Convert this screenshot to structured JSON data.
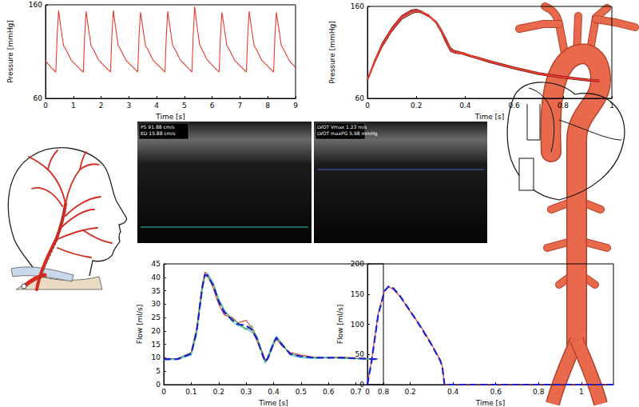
{
  "chart_data": [
    {
      "type": "line",
      "x_label": "Time [s]",
      "y_label": "Pressure [mmHg]",
      "xlim": [
        0,
        9
      ],
      "xticks": [
        0,
        1,
        2,
        3,
        4,
        5,
        6,
        7,
        8,
        9
      ],
      "ylim": [
        60,
        160
      ],
      "yticks": [
        60,
        160
      ],
      "grid": false,
      "series": [
        {
          "color": "#e8392b",
          "line_style": "solid",
          "x": [
            0,
            0.2,
            0.37,
            0.42,
            0.47,
            0.55,
            0.65,
            0.72,
            0.92,
            1.22,
            1.36,
            1.41,
            1.46,
            1.54,
            1.64,
            1.71,
            1.91,
            2.21,
            2.34,
            2.39,
            2.44,
            2.52,
            2.62,
            2.69,
            2.89,
            3.19,
            3.32,
            3.37,
            3.42,
            3.5,
            3.6,
            3.67,
            3.87,
            4.17,
            4.3,
            4.35,
            4.4,
            4.48,
            4.58,
            4.65,
            4.85,
            5.15,
            5.27,
            5.32,
            5.37,
            5.45,
            5.55,
            5.62,
            5.82,
            6.12,
            6.25,
            6.3,
            6.35,
            6.43,
            6.53,
            6.6,
            6.8,
            7.1,
            7.23,
            7.28,
            7.33,
            7.41,
            7.51,
            7.58,
            7.78,
            8.08,
            8.21,
            8.26,
            8.31,
            8.39,
            8.49,
            8.56,
            8.76,
            9.0
          ],
          "values": [
            100,
            93,
            88,
            128,
            154,
            136,
            116,
            113,
            101,
            92,
            88,
            128,
            153,
            136,
            116,
            113,
            101,
            92,
            88,
            128,
            154,
            136,
            116,
            113,
            101,
            92,
            88,
            128,
            152,
            136,
            116,
            113,
            101,
            92,
            88,
            128,
            153,
            136,
            116,
            113,
            101,
            92,
            88,
            130,
            158,
            138,
            117,
            113,
            101,
            92,
            88,
            128,
            152,
            136,
            116,
            113,
            101,
            92,
            88,
            128,
            153,
            136,
            116,
            113,
            101,
            92,
            88,
            128,
            152,
            136,
            116,
            113,
            101,
            93
          ]
        }
      ]
    },
    {
      "type": "line",
      "x_label": "Time [s]",
      "y_label": "Pressure [mmHg]",
      "xlim": [
        0,
        1
      ],
      "xticks": [
        0,
        0.2,
        0.4,
        0.6,
        0.8,
        1
      ],
      "ylim": [
        60,
        160
      ],
      "yticks": [
        60,
        160
      ],
      "grid": false,
      "series": [
        {
          "color": "#7a1c1c",
          "line_style": "solid",
          "x": [
            0,
            0.03,
            0.06,
            0.1,
            0.14,
            0.18,
            0.2,
            0.22,
            0.25,
            0.28,
            0.3,
            0.32,
            0.34,
            0.36,
            0.4,
            0.45,
            0.5,
            0.6,
            0.7,
            0.8,
            0.9,
            0.95
          ],
          "values": [
            79,
            101,
            120,
            137,
            150,
            156,
            157,
            155,
            150,
            142,
            133,
            121,
            111,
            109,
            108,
            105,
            101,
            94,
            88,
            84,
            81,
            80
          ]
        },
        {
          "color": "#5a1010",
          "line_style": "solid",
          "x": [
            0,
            0.03,
            0.06,
            0.1,
            0.14,
            0.18,
            0.2,
            0.22,
            0.25,
            0.28,
            0.3,
            0.32,
            0.34,
            0.36,
            0.4,
            0.45,
            0.5,
            0.6,
            0.7,
            0.8,
            0.9,
            0.95
          ],
          "values": [
            81,
            99,
            116,
            133,
            146,
            152,
            154,
            153,
            149,
            144,
            136,
            126,
            115,
            111,
            107,
            103,
            99,
            92,
            86,
            82,
            79,
            78
          ]
        },
        {
          "color": "#a02020",
          "line_style": "solid",
          "x": [
            0,
            0.03,
            0.06,
            0.1,
            0.14,
            0.18,
            0.2,
            0.22,
            0.25,
            0.28,
            0.3,
            0.32,
            0.34,
            0.36,
            0.4,
            0.45,
            0.5,
            0.6,
            0.7,
            0.8,
            0.9,
            0.95
          ],
          "values": [
            80,
            102,
            119,
            136,
            149,
            155,
            156,
            154,
            151,
            143,
            134,
            122,
            112,
            112,
            109,
            104,
            100,
            93,
            87,
            83,
            80,
            79
          ]
        },
        {
          "color": "#e8392b",
          "line_style": "solid",
          "x": [
            0,
            0.03,
            0.06,
            0.1,
            0.14,
            0.18,
            0.2,
            0.22,
            0.25,
            0.28,
            0.3,
            0.32,
            0.34,
            0.36,
            0.4,
            0.45,
            0.5,
            0.6,
            0.7,
            0.8,
            0.9,
            0.95
          ],
          "values": [
            80,
            100,
            118,
            135,
            148,
            154,
            155,
            154,
            150,
            143,
            135,
            124,
            113,
            110,
            108,
            104,
            100,
            93,
            87,
            83,
            80,
            79
          ]
        }
      ]
    },
    {
      "type": "line",
      "x_label": "Time [s]",
      "y_label": "Flow [ml/s]",
      "xlim": [
        0,
        0.8
      ],
      "xticks": [
        0,
        0.1,
        0.2,
        0.3,
        0.4,
        0.5,
        0.6,
        0.7,
        0.8
      ],
      "ylim": [
        0,
        45
      ],
      "yticks": [
        0,
        5,
        10,
        15,
        20,
        25,
        30,
        35,
        40,
        45
      ],
      "grid": false,
      "series": [
        {
          "color": "#e03030",
          "line_style": "solid",
          "x": [
            0,
            0.05,
            0.1,
            0.12,
            0.14,
            0.15,
            0.16,
            0.18,
            0.2,
            0.22,
            0.25,
            0.27,
            0.3,
            0.32,
            0.34,
            0.36,
            0.37,
            0.38,
            0.4,
            0.41,
            0.43,
            0.46,
            0.5,
            0.55,
            0.6,
            0.65,
            0.7,
            0.75,
            0.78
          ],
          "values": [
            9.8,
            9.6,
            12,
            21,
            37,
            42,
            41,
            36,
            30,
            26,
            25,
            23,
            24,
            21,
            16,
            12,
            9,
            10,
            15,
            17,
            14.5,
            12,
            11,
            10.2,
            10,
            10.3,
            9.9,
            9.7,
            9.6
          ]
        },
        {
          "color": "#30c0d0",
          "line_style": "solid",
          "x": [
            0,
            0.05,
            0.1,
            0.12,
            0.14,
            0.15,
            0.16,
            0.18,
            0.2,
            0.22,
            0.25,
            0.27,
            0.3,
            0.32,
            0.34,
            0.36,
            0.37,
            0.38,
            0.4,
            0.41,
            0.43,
            0.46,
            0.5,
            0.55,
            0.6,
            0.65,
            0.7,
            0.75,
            0.78
          ],
          "values": [
            9.2,
            9.4,
            11,
            19,
            35,
            40.5,
            41.5,
            38,
            32,
            28,
            23.5,
            22,
            21,
            19.5,
            18,
            10.5,
            8,
            11,
            16,
            18,
            15.5,
            11,
            10,
            9.8,
            10.2,
            9.8,
            9.6,
            9.5,
            9.4
          ]
        },
        {
          "color": "#40b040",
          "line_style": "solid",
          "x": [
            0,
            0.05,
            0.1,
            0.12,
            0.14,
            0.15,
            0.16,
            0.18,
            0.2,
            0.22,
            0.25,
            0.27,
            0.3,
            0.32,
            0.34,
            0.36,
            0.37,
            0.38,
            0.4,
            0.41,
            0.43,
            0.46,
            0.5,
            0.55,
            0.6,
            0.65,
            0.7,
            0.75,
            0.78
          ],
          "values": [
            9.6,
            9.7,
            11.8,
            20.5,
            36.5,
            41,
            40,
            37.5,
            31.5,
            27.5,
            24.5,
            23,
            20.5,
            22,
            17.5,
            11.5,
            8.5,
            9.5,
            15,
            17.5,
            15,
            11.5,
            10.6,
            10.1,
            9.9,
            10.1,
            9.7,
            9.6,
            9.5
          ]
        },
        {
          "color": "#1f1fd0",
          "line_style": "dashed",
          "x": [
            0,
            0.05,
            0.1,
            0.12,
            0.14,
            0.15,
            0.16,
            0.18,
            0.2,
            0.22,
            0.25,
            0.27,
            0.3,
            0.32,
            0.34,
            0.36,
            0.37,
            0.38,
            0.4,
            0.41,
            0.43,
            0.46,
            0.5,
            0.55,
            0.6,
            0.65,
            0.7,
            0.75,
            0.78
          ],
          "values": [
            9.5,
            9.5,
            11.5,
            20,
            36,
            41,
            40.5,
            37,
            31,
            27,
            24,
            22.5,
            22,
            20.5,
            17,
            11,
            8.5,
            10,
            15.5,
            17.5,
            15,
            11.5,
            10.5,
            10,
            10,
            10,
            9.8,
            9.6,
            9.5
          ]
        }
      ]
    },
    {
      "type": "line",
      "x_label": "Time [s]",
      "y_label": "Flow [ml/s]",
      "xlim": [
        0,
        1.15
      ],
      "xticks": [
        0,
        0.2,
        0.4,
        0.6,
        0.8,
        1
      ],
      "ylim": [
        0,
        200
      ],
      "yticks": [
        0,
        50,
        100,
        150,
        200
      ],
      "grid": false,
      "series": [
        {
          "color": "#e03030",
          "line_style": "solid",
          "x": [
            0,
            0.02,
            0.05,
            0.08,
            0.1,
            0.12,
            0.15,
            0.2,
            0.25,
            0.3,
            0.34,
            0.35,
            0.36,
            0.5,
            0.8,
            1.15
          ],
          "values": [
            0,
            42,
            117,
            156,
            162,
            158,
            147,
            121,
            96,
            67,
            41,
            31,
            0,
            0,
            0,
            0
          ]
        },
        {
          "color": "#1f1fd0",
          "line_style": "dashed",
          "x": [
            0,
            0.02,
            0.05,
            0.08,
            0.1,
            0.12,
            0.15,
            0.2,
            0.25,
            0.3,
            0.34,
            0.35,
            0.36,
            0.5,
            0.8,
            1.15
          ],
          "values": [
            0,
            40,
            115,
            155,
            163,
            160,
            148,
            122,
            95,
            66,
            40,
            30,
            0,
            0,
            0,
            0
          ]
        }
      ]
    }
  ],
  "ultrasound": [
    {
      "labels": [
        "PS 91.88 cm/s",
        "ED 15.88 cm/s"
      ]
    },
    {
      "labels": [
        "LVOT Vmax 1.23 m/s",
        "LVOT maxPG 5.98 mmHg"
      ]
    }
  ]
}
